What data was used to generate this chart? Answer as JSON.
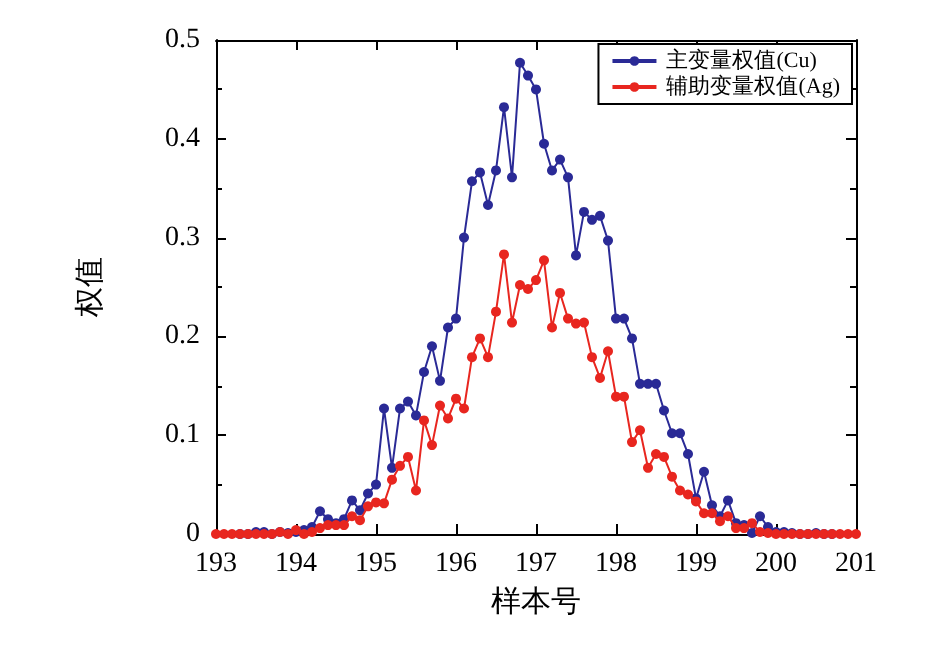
{
  "chart_data": {
    "type": "line",
    "xlabel": "样本号",
    "ylabel": "权值",
    "x": [
      193.0,
      193.1,
      193.2,
      193.3,
      193.4,
      193.5,
      193.6,
      193.7,
      193.8,
      193.9,
      194.0,
      194.1,
      194.2,
      194.3,
      194.4,
      194.5,
      194.6,
      194.7,
      194.8,
      194.9,
      195.0,
      195.1,
      195.2,
      195.3,
      195.4,
      195.5,
      195.6,
      195.7,
      195.8,
      195.9,
      196.0,
      196.1,
      196.2,
      196.3,
      196.4,
      196.5,
      196.6,
      196.7,
      196.8,
      196.9,
      197.0,
      197.1,
      197.2,
      197.3,
      197.4,
      197.5,
      197.6,
      197.7,
      197.8,
      197.9,
      198.0,
      198.1,
      198.2,
      198.3,
      198.4,
      198.5,
      198.6,
      198.7,
      198.8,
      198.9,
      199.0,
      199.1,
      199.2,
      199.3,
      199.4,
      199.5,
      199.6,
      199.7,
      199.8,
      199.9,
      200.0,
      200.1,
      200.2,
      200.3,
      200.4,
      200.5,
      200.6,
      200.7,
      200.8,
      200.9,
      201.0
    ],
    "series": [
      {
        "name": "主变量权值(Cu)",
        "color": "#2a2a96",
        "values": [
          null,
          null,
          null,
          0,
          0,
          0.002,
          0.002,
          0,
          0.002,
          0.001,
          0.002,
          0.004,
          0.007,
          0.023,
          0.015,
          0.011,
          0.015,
          0.034,
          0.024,
          0.041,
          0.05,
          0.127,
          0.067,
          0.127,
          0.134,
          0.12,
          0.164,
          0.19,
          0.155,
          0.209,
          0.218,
          0.3,
          0.357,
          0.366,
          0.333,
          0.368,
          0.432,
          0.361,
          0.477,
          0.464,
          0.45,
          0.395,
          0.368,
          0.379,
          0.361,
          0.282,
          0.326,
          0.318,
          0.322,
          0.297,
          0.218,
          0.218,
          0.198,
          0.152,
          0.152,
          0.152,
          0.125,
          0.102,
          0.102,
          0.081,
          0.036,
          0.063,
          0.029,
          0.018,
          0.034,
          0.011,
          0.009,
          0.001,
          0.018,
          0.007,
          0.002,
          0.002,
          0.001,
          0,
          0,
          0.001,
          0,
          0,
          null,
          null,
          null
        ]
      },
      {
        "name": "辅助变量权值(Ag)",
        "color": "#e8261f",
        "values": [
          0,
          0,
          0,
          0,
          0,
          0,
          0,
          0,
          0.002,
          0,
          0.004,
          0,
          0.002,
          0.006,
          0.009,
          0.009,
          0.009,
          0.018,
          0.014,
          0.028,
          0.032,
          0.031,
          0.055,
          0.069,
          0.078,
          0.044,
          0.115,
          0.09,
          0.13,
          0.117,
          0.137,
          0.127,
          0.179,
          0.198,
          0.179,
          0.225,
          0.283,
          0.214,
          0.252,
          0.248,
          0.257,
          0.277,
          0.209,
          0.244,
          0.218,
          0.213,
          0.214,
          0.179,
          0.158,
          0.185,
          0.139,
          0.139,
          0.093,
          0.105,
          0.067,
          0.081,
          0.078,
          0.058,
          0.044,
          0.04,
          0.033,
          0.021,
          0.021,
          0.013,
          0.018,
          0.006,
          0.006,
          0.011,
          0.002,
          0.001,
          0,
          0,
          0,
          0,
          0,
          0,
          0,
          0,
          0,
          0,
          0
        ]
      }
    ],
    "xlim": [
      193,
      201
    ],
    "xticks": [
      193,
      194,
      195,
      196,
      197,
      198,
      199,
      200,
      201
    ],
    "ylim": [
      0,
      0.5
    ],
    "yticks": [
      0,
      0.1,
      0.2,
      0.3,
      0.4,
      0.5
    ],
    "legend": "top right",
    "marker": "circle",
    "line_style": "solid",
    "grid": false
  }
}
